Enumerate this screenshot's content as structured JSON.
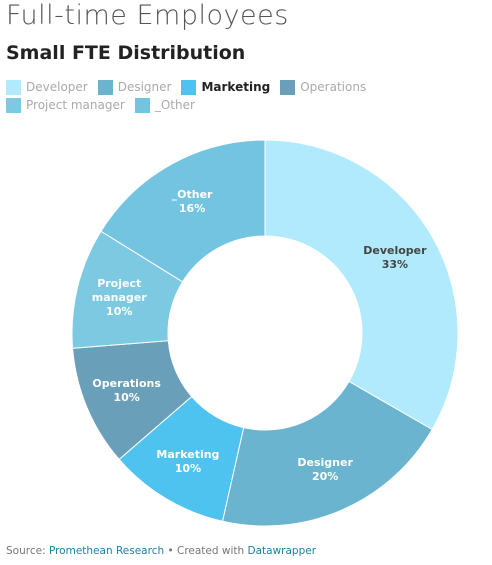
{
  "chart_data": {
    "type": "donut",
    "title": "Full-time Employees",
    "subtitle": "Small FTE Distribution",
    "categories": [
      "Developer",
      "Designer",
      "Marketing",
      "Operations",
      "Project manager",
      "_Other"
    ],
    "values": [
      33,
      20,
      10,
      10,
      10,
      16
    ],
    "value_labels": [
      "33%",
      "20%",
      "10%",
      "10%",
      "10%",
      "16%"
    ],
    "colors": [
      "#b0eafc",
      "#6ab4cf",
      "#4fc3ef",
      "#6a9fb9",
      "#7dc9e2",
      "#73c4e0"
    ],
    "highlight": 2,
    "source_label": "Source:",
    "source": "Promethean Research",
    "credit_label": "• Created with",
    "credit": "Datawrapper"
  }
}
